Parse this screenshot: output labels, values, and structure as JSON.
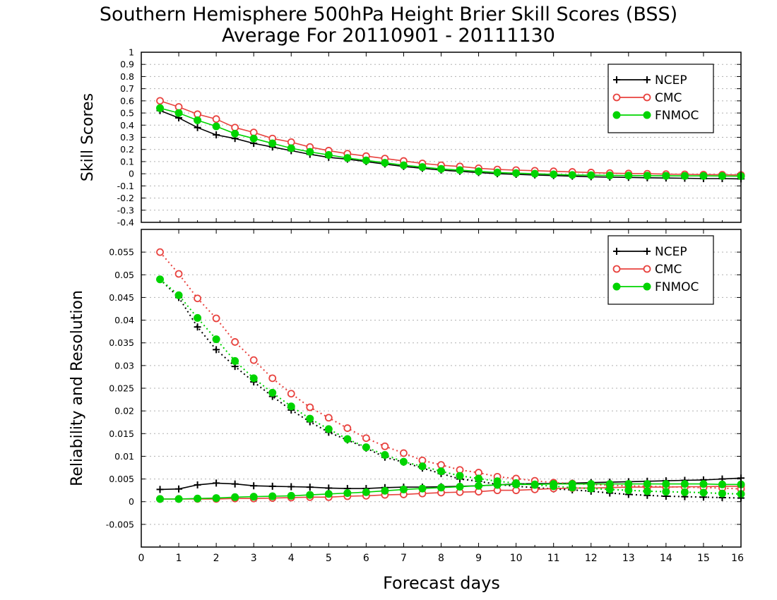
{
  "title_line1": "Southern Hemisphere 500hPa Height Brier Skill Scores (BSS)",
  "title_line2": "Average For 20110901 - 20111130",
  "xlabel": "Forecast days",
  "colors": {
    "NCEP": "#000000",
    "CMC": "#e8423e",
    "FNMOC": "#00d400",
    "grid": "#b0b0b0"
  },
  "chart_data": [
    {
      "type": "line",
      "title": "",
      "ylabel": "Skill Scores",
      "xlabel": "Forecast days",
      "xlim": [
        0,
        16
      ],
      "ylim": [
        -0.4,
        1
      ],
      "xticks": [
        "0",
        "1",
        "2",
        "3",
        "4",
        "5",
        "6",
        "7",
        "8",
        "9",
        "10",
        "11",
        "12",
        "13",
        "14",
        "15",
        "16"
      ],
      "yticks": [
        "-0.4",
        "-0.3",
        "-0.2",
        "-0.1",
        "0",
        "0.1",
        "0.2",
        "0.3",
        "0.4",
        "0.5",
        "0.6",
        "0.7",
        "0.8",
        "0.9",
        "1"
      ],
      "grid": true,
      "legend": "top-right",
      "x": [
        0.5,
        1,
        1.5,
        2,
        2.5,
        3,
        3.5,
        4,
        4.5,
        5,
        5.5,
        6,
        6.5,
        7,
        7.5,
        8,
        8.5,
        9,
        9.5,
        10,
        10.5,
        11,
        11.5,
        12,
        12.5,
        13,
        13.5,
        14,
        14.5,
        15,
        15.5,
        16
      ],
      "series": [
        {
          "name": "NCEP",
          "marker": "plus",
          "style": "solid",
          "values": [
            0.52,
            0.46,
            0.38,
            0.32,
            0.29,
            0.25,
            0.22,
            0.19,
            0.16,
            0.135,
            0.12,
            0.1,
            0.08,
            0.06,
            0.045,
            0.03,
            0.02,
            0.01,
            0.0,
            -0.005,
            -0.01,
            -0.015,
            -0.02,
            -0.025,
            -0.028,
            -0.03,
            -0.033,
            -0.035,
            -0.037,
            -0.04,
            -0.04,
            -0.042
          ]
        },
        {
          "name": "CMC",
          "marker": "circle",
          "style": "solid",
          "values": [
            0.6,
            0.55,
            0.49,
            0.45,
            0.38,
            0.34,
            0.29,
            0.26,
            0.22,
            0.19,
            0.165,
            0.145,
            0.125,
            0.105,
            0.085,
            0.07,
            0.06,
            0.045,
            0.035,
            0.03,
            0.025,
            0.02,
            0.015,
            0.01,
            0.005,
            0.002,
            0.0,
            -0.003,
            -0.005,
            -0.007,
            -0.008,
            -0.01
          ]
        },
        {
          "name": "FNMOC",
          "marker": "dot",
          "style": "solid",
          "values": [
            0.54,
            0.5,
            0.44,
            0.39,
            0.33,
            0.29,
            0.25,
            0.21,
            0.18,
            0.155,
            0.13,
            0.11,
            0.09,
            0.07,
            0.055,
            0.04,
            0.03,
            0.02,
            0.01,
            0.005,
            0.0,
            -0.005,
            -0.01,
            -0.012,
            -0.014,
            -0.015,
            -0.016,
            -0.017,
            -0.018,
            -0.018,
            -0.019,
            -0.02
          ]
        }
      ]
    },
    {
      "type": "line",
      "title": "",
      "ylabel": "Reliability and Resolution",
      "xlabel": "Forecast days",
      "xlim": [
        0,
        16
      ],
      "ylim": [
        -0.01,
        0.06
      ],
      "xticks": [
        "0",
        "1",
        "2",
        "3",
        "4",
        "5",
        "6",
        "7",
        "8",
        "9",
        "10",
        "11",
        "12",
        "13",
        "14",
        "15",
        "16"
      ],
      "yticks": [
        "-0.005",
        "0",
        "0.005",
        "0.01",
        "0.015",
        "0.02",
        "0.025",
        "0.03",
        "0.035",
        "0.04",
        "0.045",
        "0.05",
        "0.055"
      ],
      "grid": true,
      "legend": "top-right",
      "x": [
        0.5,
        1,
        1.5,
        2,
        2.5,
        3,
        3.5,
        4,
        4.5,
        5,
        5.5,
        6,
        6.5,
        7,
        7.5,
        8,
        8.5,
        9,
        9.5,
        10,
        10.5,
        11,
        11.5,
        12,
        12.5,
        13,
        13.5,
        14,
        14.5,
        15,
        15.5,
        16
      ],
      "series": [
        {
          "name": "NCEP",
          "marker": "plus",
          "style": "solid",
          "component": "reliability",
          "values": [
            0.0027,
            0.0028,
            0.0037,
            0.0041,
            0.0039,
            0.0035,
            0.0034,
            0.0033,
            0.0032,
            0.003,
            0.0029,
            0.0029,
            0.0031,
            0.0032,
            0.0032,
            0.0033,
            0.0034,
            0.0035,
            0.0037,
            0.0039,
            0.004,
            0.004,
            0.0041,
            0.0042,
            0.0043,
            0.0044,
            0.0045,
            0.0046,
            0.0047,
            0.0048,
            0.005,
            0.0052
          ]
        },
        {
          "name": "NCEP",
          "marker": "plus",
          "style": "dotted",
          "component": "resolution",
          "values": [
            0.049,
            0.045,
            0.0385,
            0.0335,
            0.0298,
            0.0264,
            0.0232,
            0.0202,
            0.0176,
            0.0153,
            0.0136,
            0.0118,
            0.0098,
            0.0087,
            0.0074,
            0.0062,
            0.005,
            0.0045,
            0.0038,
            0.0034,
            0.0031,
            0.0028,
            0.0026,
            0.0023,
            0.0019,
            0.0016,
            0.0014,
            0.0012,
            0.0011,
            0.001,
            0.0009,
            0.0008
          ]
        },
        {
          "name": "CMC",
          "marker": "circle",
          "style": "solid",
          "component": "reliability",
          "values": [
            0.0006,
            0.0006,
            0.0006,
            0.0006,
            0.0007,
            0.0007,
            0.0008,
            0.0009,
            0.001,
            0.001,
            0.0012,
            0.0013,
            0.0015,
            0.0016,
            0.0018,
            0.002,
            0.0021,
            0.0022,
            0.0025,
            0.0025,
            0.0027,
            0.0029,
            0.003,
            0.003,
            0.0031,
            0.0032,
            0.0032,
            0.0032,
            0.0033,
            0.0033,
            0.0034,
            0.0034
          ]
        },
        {
          "name": "CMC",
          "marker": "circle",
          "style": "dotted",
          "component": "resolution",
          "values": [
            0.055,
            0.0502,
            0.0448,
            0.0404,
            0.0352,
            0.0312,
            0.0272,
            0.0238,
            0.0208,
            0.0185,
            0.0162,
            0.014,
            0.0122,
            0.0107,
            0.0091,
            0.0081,
            0.007,
            0.0064,
            0.0055,
            0.0051,
            0.0046,
            0.0042,
            0.004,
            0.0038,
            0.0036,
            0.0035,
            0.0034,
            0.0033,
            0.0032,
            0.0031,
            0.003,
            0.0028
          ]
        },
        {
          "name": "FNMOC",
          "marker": "dot",
          "style": "solid",
          "component": "reliability",
          "values": [
            0.0006,
            0.0006,
            0.0007,
            0.0008,
            0.001,
            0.0011,
            0.0012,
            0.0013,
            0.0015,
            0.0017,
            0.0019,
            0.0021,
            0.0024,
            0.0027,
            0.0029,
            0.0031,
            0.0033,
            0.0035,
            0.0037,
            0.0038,
            0.0038,
            0.0039,
            0.0039,
            0.0039,
            0.0039,
            0.0039,
            0.0039,
            0.0039,
            0.0039,
            0.0039,
            0.0038,
            0.0038
          ]
        },
        {
          "name": "FNMOC",
          "marker": "dot",
          "style": "dotted",
          "component": "resolution",
          "values": [
            0.049,
            0.0455,
            0.0405,
            0.0358,
            0.031,
            0.0272,
            0.024,
            0.021,
            0.0183,
            0.016,
            0.0138,
            0.012,
            0.0103,
            0.0088,
            0.0078,
            0.0067,
            0.0057,
            0.0051,
            0.0045,
            0.0041,
            0.0037,
            0.0034,
            0.0031,
            0.0029,
            0.0027,
            0.0025,
            0.0023,
            0.0022,
            0.0021,
            0.002,
            0.0018,
            0.0017
          ]
        }
      ]
    }
  ],
  "legend_items": [
    "NCEP",
    "CMC",
    "FNMOC"
  ]
}
